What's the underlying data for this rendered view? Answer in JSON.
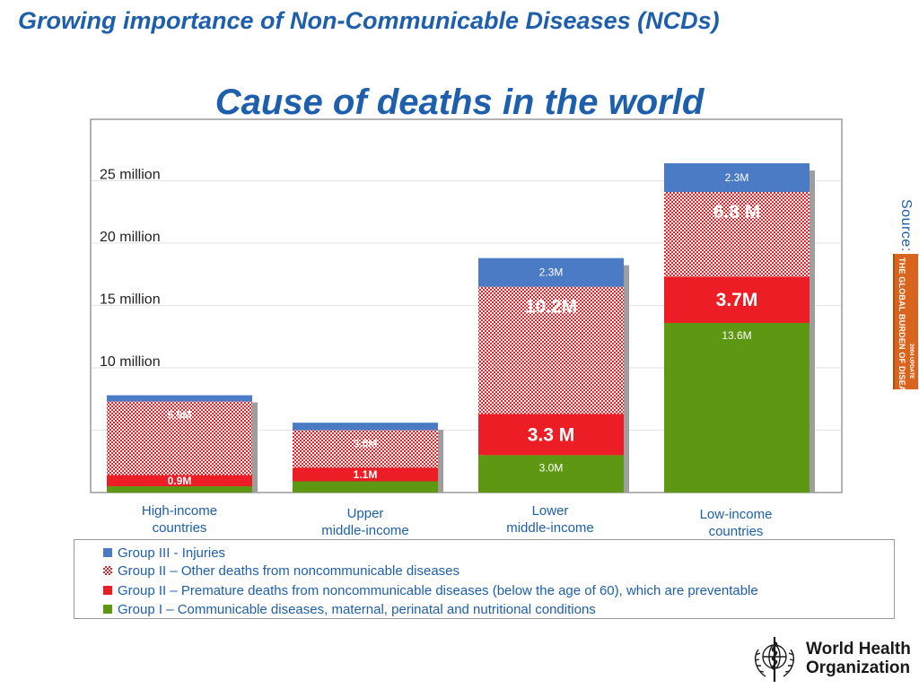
{
  "header": {
    "title": "Growing importance of Non-Communicable Diseases (NCDs)"
  },
  "chart_data": {
    "type": "bar",
    "stacked": true,
    "title": "Cause of deaths in the world",
    "y_tick_labels": [
      "25 million",
      "20 million",
      "15 million",
      "10 million"
    ],
    "y_tick_values": [
      25,
      20,
      15,
      10
    ],
    "ylim": [
      0,
      30
    ],
    "y_unit": "million",
    "grid": true,
    "legend_position": "bottom",
    "categories": [
      "High-income countries",
      "Upper middle-income",
      "Lower middle-income",
      "Low-income countries"
    ],
    "series": [
      {
        "name": "Group I – Communicable diseases, maternal, perinatal and nutritional conditions",
        "color": "#5e9812",
        "values": [
          0.5,
          0.9,
          3.0,
          13.6
        ],
        "labels": [
          "",
          "",
          "3.0M",
          "13.6M"
        ]
      },
      {
        "name": "Group II – Premature deaths from noncommunicable diseases (below the age of 60), which are preventable",
        "color": "#ec1d24",
        "values": [
          0.9,
          1.1,
          3.3,
          3.7
        ],
        "labels": [
          "0.9M",
          "1.1M",
          "3.3 M",
          "3.7M"
        ]
      },
      {
        "name": "Group II – Other deaths from noncommunicable diseases",
        "color": "#ec1d24",
        "pattern": "dotted",
        "values": [
          5.9,
          3.0,
          10.2,
          6.8
        ],
        "labels": [
          "5.9M",
          "3.0M",
          "10.2M",
          "6.8 M"
        ]
      },
      {
        "name": "Group III - Injuries",
        "color": "#4a7bc4",
        "values": [
          0.5,
          0.6,
          2.3,
          2.3
        ],
        "labels": [
          "",
          "",
          "2.3M",
          "2.3M"
        ]
      }
    ]
  },
  "category_labels": [
    [
      "High-income",
      "countries"
    ],
    [
      "Upper",
      "middle-income"
    ],
    [
      "Lower",
      "middle-income"
    ],
    [
      "Low-income",
      "countries"
    ]
  ],
  "legend": [
    {
      "label": "Group III - Injuries",
      "color": "#4a7bc4",
      "pattern": "solid"
    },
    {
      "label": "Group II – Other deaths from noncommunicable diseases",
      "color": "#ec1d24",
      "pattern": "dotted"
    },
    {
      "label": "Group II – Premature deaths from noncommunicable diseases (below the age of 60), which are preventable",
      "color": "#ec1d24",
      "pattern": "solid"
    },
    {
      "label": "Group I – Communicable diseases, maternal, perinatal and nutritional conditions",
      "color": "#5e9812",
      "pattern": "solid"
    }
  ],
  "source": {
    "label": "Source:",
    "book_title": "THE GLOBAL BURDEN OF DISEASE",
    "book_subtitle": "2004 UPDATE",
    "book_color": "#d8641e"
  },
  "logo": {
    "name_line1": "World Health",
    "name_line2": "Organization"
  }
}
